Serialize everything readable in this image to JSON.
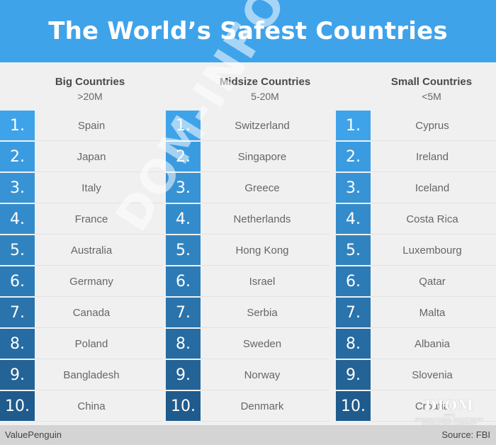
{
  "title": "The World’s Safest Countries",
  "colors": {
    "header_bg": "#3fa3ea",
    "badge_gradient_top": "#3fa3ea",
    "badge_gradient_bottom": "#1f5b8c"
  },
  "columns": [
    {
      "name": "Big Countries",
      "range": ">20M",
      "items": [
        {
          "rank": "1.",
          "country": "Spain"
        },
        {
          "rank": "2.",
          "country": "Japan"
        },
        {
          "rank": "3.",
          "country": "Italy"
        },
        {
          "rank": "4.",
          "country": "France"
        },
        {
          "rank": "5.",
          "country": "Australia"
        },
        {
          "rank": "6.",
          "country": "Germany"
        },
        {
          "rank": "7.",
          "country": "Canada"
        },
        {
          "rank": "8.",
          "country": "Poland"
        },
        {
          "rank": "9.",
          "country": "Bangladesh"
        },
        {
          "rank": "10.",
          "country": "China"
        }
      ]
    },
    {
      "name": "Midsize Countries",
      "range": "5-20M",
      "items": [
        {
          "rank": "1.",
          "country": "Switzerland"
        },
        {
          "rank": "2.",
          "country": "Singapore"
        },
        {
          "rank": "3.",
          "country": "Greece"
        },
        {
          "rank": "4.",
          "country": "Netherlands"
        },
        {
          "rank": "5.",
          "country": "Hong Kong"
        },
        {
          "rank": "6.",
          "country": "Israel"
        },
        {
          "rank": "7.",
          "country": "Serbia"
        },
        {
          "rank": "8.",
          "country": "Sweden"
        },
        {
          "rank": "9.",
          "country": "Norway"
        },
        {
          "rank": "10.",
          "country": "Denmark"
        }
      ]
    },
    {
      "name": "Small Countries",
      "range": "<5M",
      "items": [
        {
          "rank": "1.",
          "country": "Cyprus"
        },
        {
          "rank": "2.",
          "country": "Ireland"
        },
        {
          "rank": "3.",
          "country": "Iceland"
        },
        {
          "rank": "4.",
          "country": "Costa Rica"
        },
        {
          "rank": "5.",
          "country": "Luxembourg"
        },
        {
          "rank": "6.",
          "country": "Qatar"
        },
        {
          "rank": "7.",
          "country": "Malta"
        },
        {
          "rank": "8.",
          "country": "Albania"
        },
        {
          "rank": "9.",
          "country": "Slovenia"
        },
        {
          "rank": "10.",
          "country": "Croatia"
        }
      ]
    }
  ],
  "footer": {
    "left": "ValuePenguin",
    "right": "Source: FBI"
  },
  "watermark": "DOM-INFO.eu",
  "logo": {
    "mark": "DIOM",
    "sub1": "INFO",
    "sub2": "INTERNATIONAL INVESTMENT",
    "sub3": "CONSULTING COMPANY"
  }
}
